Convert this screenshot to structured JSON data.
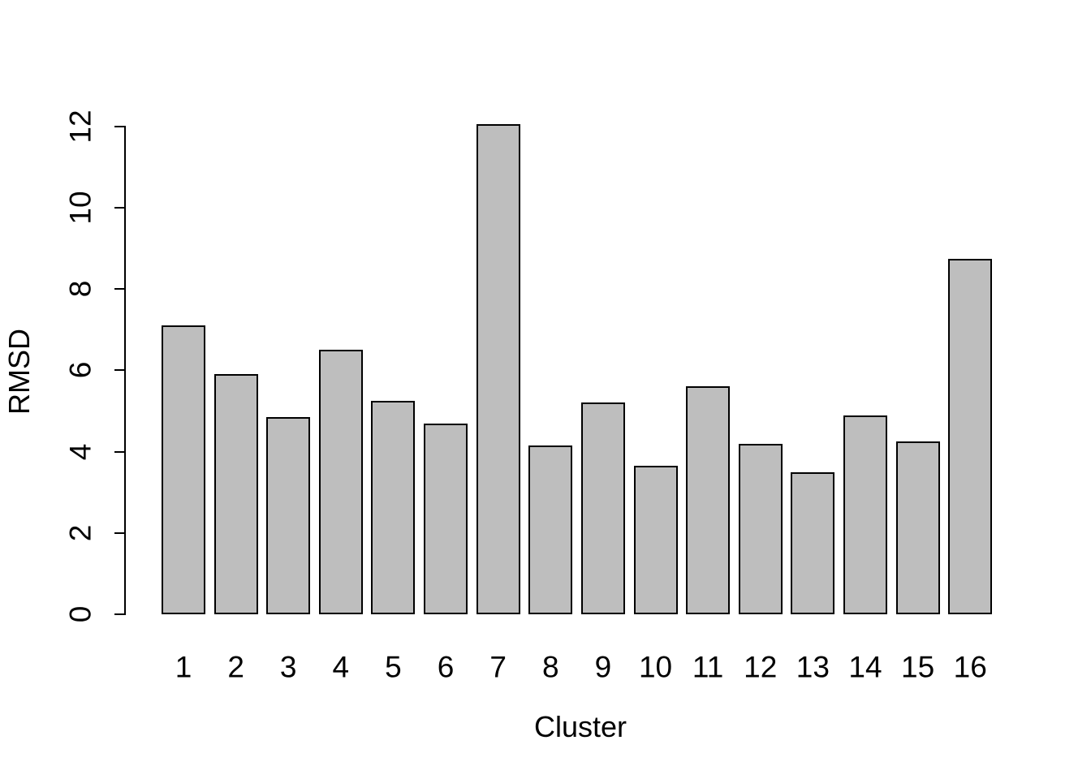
{
  "chart_data": {
    "type": "bar",
    "title": "",
    "xlabel": "Cluster",
    "ylabel": "RMSD",
    "categories": [
      "1",
      "2",
      "3",
      "4",
      "5",
      "6",
      "7",
      "8",
      "9",
      "10",
      "11",
      "12",
      "13",
      "14",
      "15",
      "16"
    ],
    "values": [
      7.1,
      5.9,
      4.85,
      6.5,
      5.25,
      4.7,
      12.05,
      4.15,
      5.2,
      3.65,
      5.6,
      4.2,
      3.5,
      4.9,
      4.25,
      8.75
    ],
    "ylim": [
      0,
      12
    ],
    "yticks": [
      0,
      2,
      4,
      6,
      8,
      10,
      12
    ],
    "grid": false,
    "legend": "none",
    "bar_fill_color": "#bebebe",
    "bar_border_color": "#000000",
    "background_color": "#ffffff",
    "text_color": "#000000"
  }
}
